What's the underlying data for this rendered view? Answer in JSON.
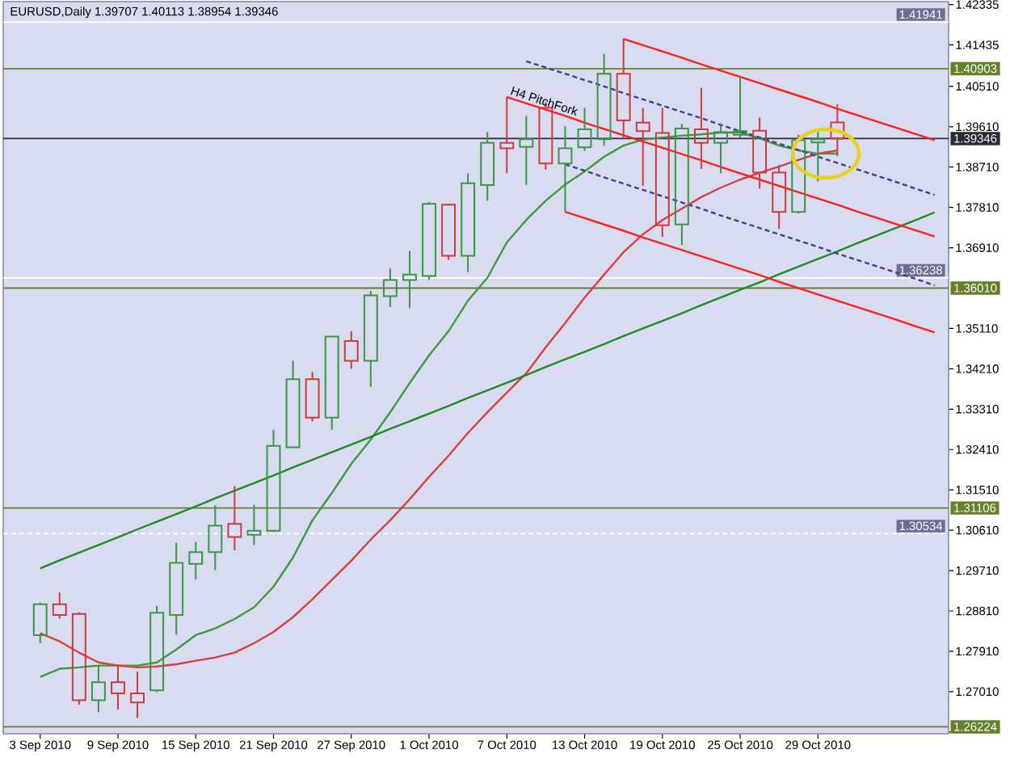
{
  "chart_data": {
    "type": "candlestick",
    "title": "EURUSD,Daily 1.39707 1.40113 1.38954 1.39346",
    "categories": [
      "3 Sep 2010",
      null,
      null,
      null,
      "9 Sep 2010",
      null,
      null,
      null,
      "15 Sep 2010",
      null,
      null,
      null,
      "21 Sep 2010",
      null,
      null,
      null,
      "27 Sep 2010",
      null,
      null,
      null,
      "1 Oct 2010",
      null,
      null,
      null,
      "7 Oct 2010",
      null,
      null,
      null,
      "13 Oct 2010",
      null,
      null,
      null,
      "19 Oct 2010",
      null,
      null,
      null,
      "25 Oct 2010",
      null,
      null,
      null,
      "29 Oct 2010",
      null,
      null,
      null,
      null,
      null,
      null
    ],
    "ohlc": [
      [
        1.2827,
        1.29,
        1.2809,
        1.2896
      ],
      [
        1.2896,
        1.2922,
        1.2864,
        1.2872
      ],
      [
        1.2874,
        1.2878,
        1.2672,
        1.2682
      ],
      [
        1.2682,
        1.276,
        1.2655,
        1.2722
      ],
      [
        1.2722,
        1.2762,
        1.2661,
        1.2697
      ],
      [
        1.2697,
        1.2745,
        1.2642,
        1.2677
      ],
      [
        1.2704,
        1.2892,
        1.27,
        1.2877
      ],
      [
        1.2872,
        1.3033,
        1.2828,
        1.2988
      ],
      [
        1.2986,
        1.3035,
        1.2951,
        1.3012
      ],
      [
        1.3012,
        1.3117,
        1.2972,
        1.3071
      ],
      [
        1.3075,
        1.3159,
        1.3016,
        1.3046
      ],
      [
        1.3051,
        1.3118,
        1.3028,
        1.306
      ],
      [
        1.306,
        1.3285,
        1.3057,
        1.3249
      ],
      [
        1.3246,
        1.3439,
        1.3245,
        1.3398
      ],
      [
        1.3398,
        1.3414,
        1.3304,
        1.3312
      ],
      [
        1.3312,
        1.3494,
        1.3285,
        1.3493
      ],
      [
        1.3483,
        1.3505,
        1.3421,
        1.3439
      ],
      [
        1.3439,
        1.3595,
        1.3381,
        1.3585
      ],
      [
        1.3583,
        1.3645,
        1.3559,
        1.3619
      ],
      [
        1.3619,
        1.3684,
        1.3556,
        1.3631
      ],
      [
        1.3628,
        1.3793,
        1.3619,
        1.3789
      ],
      [
        1.3787,
        1.3789,
        1.3664,
        1.3673
      ],
      [
        1.3673,
        1.3857,
        1.3637,
        1.3835
      ],
      [
        1.3831,
        1.3949,
        1.3796,
        1.3925
      ],
      [
        1.3925,
        1.4027,
        1.3857,
        1.3913
      ],
      [
        1.3916,
        1.3985,
        1.3831,
        1.3933
      ],
      [
        1.4003,
        1.4016,
        1.3865,
        1.3879
      ],
      [
        1.3879,
        1.3962,
        1.3771,
        1.3913
      ],
      [
        1.3915,
        1.4003,
        1.3907,
        1.3955
      ],
      [
        1.3933,
        1.4123,
        1.3919,
        1.4079
      ],
      [
        1.4079,
        1.4157,
        1.3933,
        1.3975
      ],
      [
        1.397,
        1.4003,
        1.3829,
        1.3951
      ],
      [
        1.3947,
        1.4003,
        1.3715,
        1.3741
      ],
      [
        1.3743,
        1.3967,
        1.3697,
        1.3957
      ],
      [
        1.3955,
        1.4048,
        1.3867,
        1.3925
      ],
      [
        1.3925,
        1.3969,
        1.3857,
        1.3949
      ],
      [
        1.3943,
        1.4075,
        1.3937,
        1.3951
      ],
      [
        1.3952,
        1.3981,
        1.3823,
        1.3859
      ],
      [
        1.3859,
        1.3875,
        1.3733,
        1.3771
      ],
      [
        1.3771,
        1.3943,
        1.3767,
        1.3931
      ],
      [
        1.3926,
        1.3949,
        1.3839,
        1.3933
      ],
      [
        1.39707,
        1.40113,
        1.38954,
        1.39346
      ],
      null,
      null,
      null,
      null,
      null
    ],
    "colors": [
      "#3c9646",
      "#cd3c3c",
      "#cd3c3c",
      "#3c9646",
      "#cd3c3c",
      "#cd3c3c",
      "#3c9646",
      "#3c9646",
      "#3c9646",
      "#3c9646",
      "#cd3c3c",
      "#3c9646",
      "#3c9646",
      "#3c9646",
      "#cd3c3c",
      "#3c9646",
      "#cd3c3c",
      "#3c9646",
      "#3c9646",
      "#3c9646",
      "#3c9646",
      "#cd3c3c",
      "#3c9646",
      "#3c9646",
      "#cd3c3c",
      "#3c9646",
      "#cd3c3c",
      "#3c9646",
      "#3c9646",
      "#3c9646",
      "#cd3c3c",
      "#cd3c3c",
      "#cd3c3c",
      "#3c9646",
      "#cd3c3c",
      "#3c9646",
      "#3c9646",
      "#cd3c3c",
      "#cd3c3c",
      "#3c9646",
      "#3c9646",
      "#cd3c3c",
      null,
      null,
      null,
      null,
      null
    ],
    "series": [
      {
        "type": "line",
        "color": "#3c9a3c",
        "values": [
          1.2734,
          1.2752,
          1.2755,
          1.2759,
          1.2759,
          1.2759,
          1.2766,
          1.2795,
          1.2827,
          1.2842,
          1.2863,
          1.2889,
          1.2935,
          1.3,
          1.3083,
          1.3144,
          1.3209,
          1.3263,
          1.3324,
          1.3389,
          1.3451,
          1.3505,
          1.3573,
          1.3624,
          1.3703,
          1.3753,
          1.3796,
          1.3832,
          1.3861,
          1.3894,
          1.3919,
          1.3932,
          1.3937,
          1.3941,
          1.3944,
          1.3948,
          1.3948,
          1.3935,
          1.3919,
          1.3908,
          1.3901,
          1.3901,
          null,
          null,
          null,
          null,
          null
        ]
      },
      {
        "type": "line",
        "color": "#d84040",
        "values": [
          1.2831,
          1.2813,
          1.2788,
          1.2766,
          1.2759,
          1.2755,
          1.2757,
          1.2762,
          1.277,
          1.2777,
          1.2788,
          1.2809,
          1.2834,
          1.2867,
          1.2907,
          1.295,
          1.2993,
          1.304,
          1.3083,
          1.313,
          1.318,
          1.3227,
          1.3278,
          1.3324,
          1.3368,
          1.3411,
          1.3469,
          1.3523,
          1.358,
          1.3631,
          1.3681,
          1.3721,
          1.3753,
          1.3778,
          1.3804,
          1.3825,
          1.3843,
          1.3858,
          1.3872,
          1.3887,
          1.3901,
          1.3908,
          null,
          null,
          null,
          null,
          null
        ]
      },
      {
        "type": "line",
        "color": "#1e8c1e",
        "values": [
          1.2976,
          1.2994,
          1.3011,
          1.3028,
          1.3045,
          1.3063,
          1.308,
          1.3097,
          1.3114,
          1.3132,
          1.3149,
          1.3166,
          1.3183,
          1.3201,
          1.3218,
          1.3235,
          1.3252,
          1.3269,
          1.3287,
          1.3304,
          1.3321,
          1.3338,
          1.3356,
          1.3373,
          1.339,
          1.3407,
          1.3425,
          1.3442,
          1.3459,
          1.3476,
          1.3494,
          1.3511,
          1.3528,
          1.3545,
          1.3563,
          1.358,
          1.3597,
          1.3614,
          1.3632,
          1.3649,
          1.3666,
          1.3683,
          1.3701,
          1.3718,
          1.3735,
          1.3752,
          1.377
        ]
      },
      {
        "type": "line",
        "color": "#ff2020",
        "values": [
          null,
          null,
          null,
          null,
          null,
          null,
          null,
          null,
          null,
          null,
          null,
          null,
          null,
          null,
          null,
          null,
          null,
          null,
          null,
          null,
          null,
          null,
          null,
          null,
          1.4027,
          1.4013,
          1.3999,
          1.3985,
          1.397,
          1.3956,
          1.3942,
          1.3928,
          1.3914,
          1.39,
          1.3886,
          1.3871,
          1.3857,
          1.3843,
          1.3829,
          1.3815,
          1.3801,
          1.3787,
          1.3772,
          1.3758,
          1.3744,
          1.373,
          1.3716
        ]
      },
      {
        "type": "line",
        "color": "#ff2020",
        "values": [
          null,
          null,
          null,
          null,
          null,
          null,
          null,
          null,
          null,
          null,
          null,
          null,
          null,
          null,
          null,
          null,
          null,
          null,
          null,
          null,
          null,
          null,
          null,
          null,
          null,
          null,
          null,
          null,
          null,
          null,
          1.4157,
          1.4143,
          1.4129,
          1.4115,
          1.41,
          1.4086,
          1.4072,
          1.4058,
          1.4044,
          1.403,
          1.4016,
          1.4001,
          1.3987,
          1.3973,
          1.3959,
          1.3945,
          1.3931
        ]
      },
      {
        "type": "line",
        "color": "#ff2020",
        "values": [
          null,
          null,
          null,
          null,
          null,
          null,
          null,
          null,
          null,
          null,
          null,
          null,
          null,
          null,
          null,
          null,
          null,
          null,
          null,
          null,
          null,
          null,
          null,
          null,
          null,
          null,
          null,
          1.3771,
          1.3757,
          1.3743,
          1.3729,
          1.3714,
          1.37,
          1.3686,
          1.3672,
          1.3658,
          1.3644,
          1.363,
          1.3615,
          1.3601,
          1.3587,
          1.3573,
          1.3559,
          1.3545,
          1.3531,
          1.3516,
          1.3502
        ]
      },
      {
        "type": "line",
        "color": "#40408c",
        "line_style": "dashed",
        "values": [
          null,
          null,
          null,
          null,
          null,
          null,
          null,
          null,
          null,
          null,
          null,
          null,
          null,
          null,
          null,
          null,
          null,
          null,
          null,
          null,
          null,
          null,
          null,
          null,
          null,
          1.4107,
          1.4093,
          1.4079,
          1.4065,
          1.4051,
          1.4036,
          1.4022,
          1.4008,
          1.3994,
          1.398,
          1.3965,
          1.3951,
          1.3937,
          1.3923,
          1.3909,
          1.3894,
          1.388,
          1.3866,
          1.3852,
          1.3838,
          1.3823,
          1.3809
        ]
      },
      {
        "type": "line",
        "color": "#40408c",
        "line_style": "dashed",
        "values": [
          null,
          null,
          null,
          null,
          null,
          null,
          null,
          null,
          null,
          null,
          null,
          null,
          null,
          null,
          null,
          null,
          null,
          null,
          null,
          null,
          null,
          null,
          null,
          null,
          null,
          null,
          null,
          1.3877,
          1.3863,
          1.3848,
          1.3834,
          1.382,
          1.3806,
          1.3792,
          1.3778,
          1.3763,
          1.3749,
          1.3735,
          1.3721,
          1.3707,
          1.3693,
          1.3678,
          1.3664,
          1.365,
          1.3636,
          1.3622,
          1.3607
        ]
      }
    ],
    "ylim": [
      1.2607,
      1.424
    ],
    "yticks": [
      1.42335,
      1.41435,
      {
        "value": 1.4051,
        "label": "1.40510"
      },
      {
        "value": 1.3961,
        "label": "1.39610"
      },
      {
        "value": 1.3871,
        "label": "1.38710"
      },
      {
        "value": 1.3781,
        "label": "1.37810"
      },
      {
        "value": 1.3691,
        "label": "1.36910"
      },
      {
        "value": 1.3511,
        "label": "1.35110"
      },
      {
        "value": 1.3421,
        "label": "1.34210"
      },
      {
        "value": 1.3331,
        "label": "1.33310"
      },
      {
        "value": 1.3241,
        "label": "1.32410"
      },
      {
        "value": 1.3151,
        "label": "1.31510"
      },
      {
        "value": 1.3061,
        "label": "1.30610"
      },
      {
        "value": 1.2971,
        "label": "1.29710"
      },
      {
        "value": 1.2881,
        "label": "1.28810"
      },
      {
        "value": 1.2791,
        "label": "1.27910"
      },
      {
        "value": 1.2701,
        "label": "1.27010"
      },
      {
        "value": 1.2611,
        "label": null
      }
    ],
    "ref_lines": [
      {
        "axis": "y",
        "value": 1.41941,
        "label": "1.41941",
        "color": "#ffffff"
      },
      {
        "axis": "y",
        "value": 1.40903,
        "label": "1.40903",
        "color": "#667f2a"
      },
      {
        "axis": "y",
        "value": 1.39346,
        "label": "1.39346",
        "color": "#2b2b3a"
      },
      {
        "axis": "y",
        "value": 1.36238,
        "label": "1.36238",
        "color": "#ffffff"
      },
      {
        "axis": "y",
        "value": 1.3601,
        "label": "1.36010",
        "color": "#667f2a"
      },
      {
        "axis": "y",
        "value": 1.31106,
        "label": "1.31106",
        "color": "#667f2a"
      },
      {
        "axis": "y",
        "value": 1.30534,
        "label": "1.30534",
        "color": "#ffffff",
        "line_style": "dashed"
      },
      {
        "axis": "y",
        "value": 1.26224,
        "label": "1.26224",
        "color": "#667f2a"
      }
    ],
    "annotations": [
      {
        "text": "H4 PitchFork",
        "x": "7 Oct 2010",
        "y": 1.4027
      }
    ]
  }
}
